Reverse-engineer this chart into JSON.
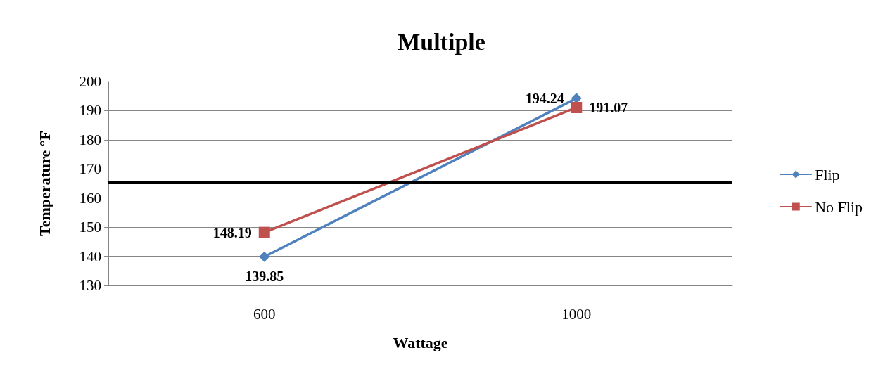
{
  "chart_data": {
    "type": "line",
    "title": "Multiple",
    "xlabel": "Wattage",
    "ylabel": "Temperature °F",
    "categories": [
      "600",
      "1000"
    ],
    "series": [
      {
        "name": "Flip",
        "color": "#4f81bd",
        "values": [
          139.85,
          194.24
        ],
        "marker": "diamond"
      },
      {
        "name": "No Flip",
        "color": "#c0504d",
        "values": [
          148.19,
          191.07
        ],
        "marker": "square"
      }
    ],
    "ylim": [
      130,
      200
    ],
    "yticks": [
      130,
      140,
      150,
      160,
      170,
      180,
      190,
      200
    ],
    "grid": "y",
    "legend": "right",
    "data_labels": true,
    "ref_lines": [
      {
        "axis": "y",
        "value": 165.3,
        "color": "#000000"
      }
    ]
  }
}
